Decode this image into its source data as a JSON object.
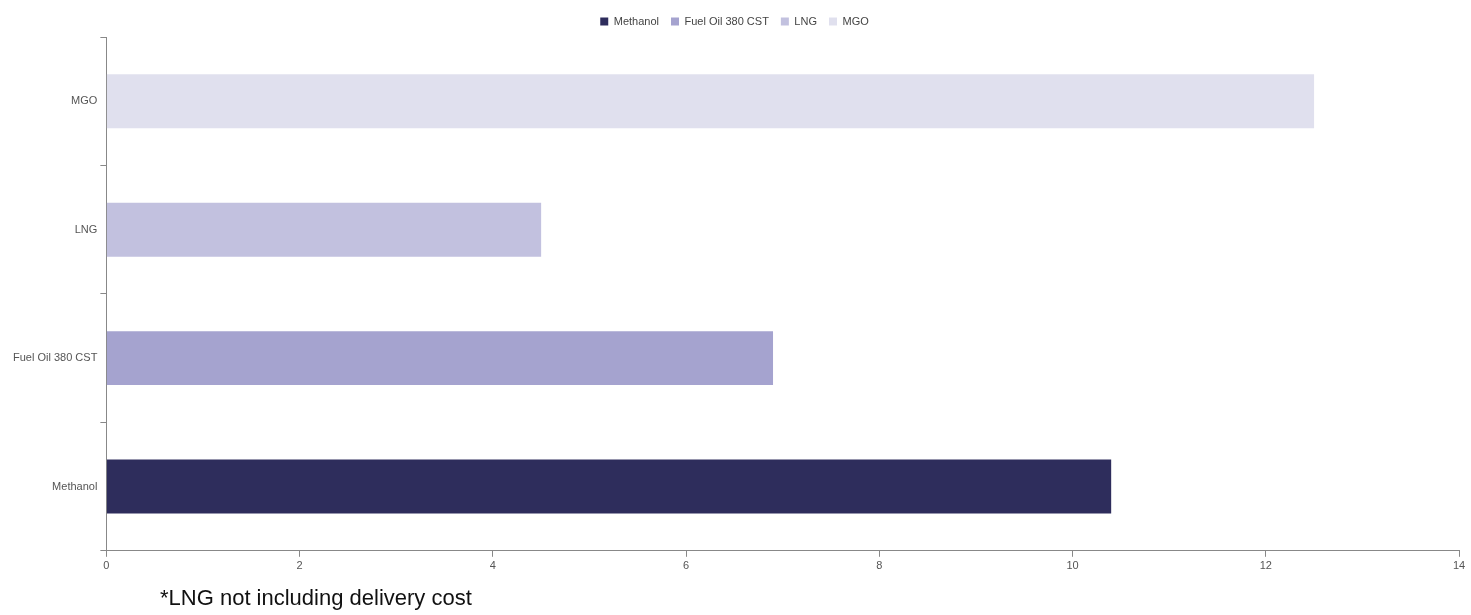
{
  "chart_data": {
    "type": "bar",
    "orientation": "horizontal",
    "stacked": true,
    "legend": "top",
    "categories": [
      "MGO",
      "LNG",
      "Fuel Oil 380 CST",
      "Methanol"
    ],
    "series": [
      {
        "name": "Methanol",
        "color": "#2e2d5c",
        "values": [
          null,
          null,
          null,
          10.4
        ]
      },
      {
        "name": "Fuel Oil 380 CST",
        "color": "#a5a3cf",
        "values": [
          null,
          null,
          6.9,
          null
        ]
      },
      {
        "name": "LNG",
        "color": "#c2c1df",
        "values": [
          null,
          4.5,
          null,
          null
        ]
      },
      {
        "name": "MGO",
        "color": "#e0e0ee",
        "values": [
          12.5,
          null,
          null,
          null
        ]
      }
    ],
    "xlim": [
      0,
      14
    ],
    "xticks": [
      0,
      2,
      4,
      6,
      8,
      10,
      12,
      14
    ],
    "annotations": [
      "*LNG not including delivery cost"
    ]
  }
}
